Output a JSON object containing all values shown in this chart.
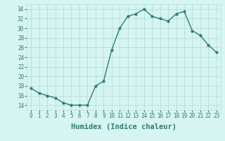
{
  "x": [
    0,
    1,
    2,
    3,
    4,
    5,
    6,
    7,
    8,
    9,
    10,
    11,
    12,
    13,
    14,
    15,
    16,
    17,
    18,
    19,
    20,
    21,
    22,
    23
  ],
  "y": [
    17.5,
    16.5,
    16.0,
    15.5,
    14.5,
    14.0,
    14.0,
    14.0,
    18.0,
    19.0,
    25.5,
    30.0,
    32.5,
    33.0,
    34.0,
    32.5,
    32.0,
    31.5,
    33.0,
    33.5,
    29.5,
    28.5,
    26.5,
    25.0
  ],
  "line_color": "#2e7d6e",
  "marker": "o",
  "marker_size": 2.0,
  "line_width": 1.0,
  "bg_color": "#d6f5f0",
  "grid_color": "#b8ddd8",
  "xlabel": "Humidex (Indice chaleur)",
  "xlim": [
    -0.5,
    23.5
  ],
  "ylim": [
    13,
    35
  ],
  "yticks": [
    14,
    16,
    18,
    20,
    22,
    24,
    26,
    28,
    30,
    32,
    34
  ],
  "xticks": [
    0,
    1,
    2,
    3,
    4,
    5,
    6,
    7,
    8,
    9,
    10,
    11,
    12,
    13,
    14,
    15,
    16,
    17,
    18,
    19,
    20,
    21,
    22,
    23
  ],
  "tick_color": "#2e7d6e",
  "label_color": "#2e7d6e",
  "tick_fontsize": 5.5,
  "xlabel_fontsize": 7.5
}
